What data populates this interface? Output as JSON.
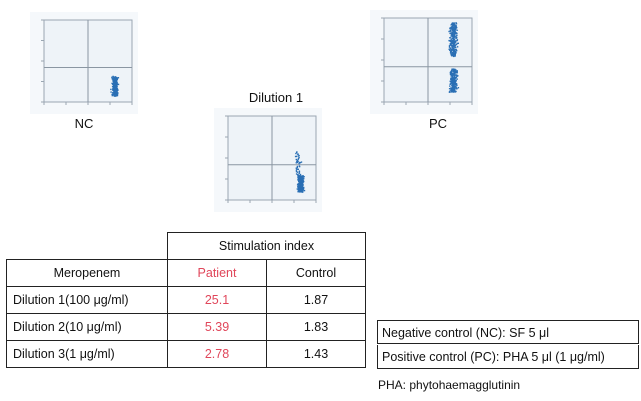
{
  "chart_data": [
    {
      "type": "scatter",
      "caption": "NC",
      "color": "#2a6fb5",
      "clusters": [
        {
          "x_center": 0.8,
          "y_range": [
            0.08,
            0.32
          ],
          "x_spread": 0.05,
          "density": "high"
        }
      ]
    },
    {
      "type": "scatter",
      "caption": "Dilution 1",
      "color": "#2a6fb5",
      "clusters": [
        {
          "x_center": 0.82,
          "y_range": [
            0.1,
            0.3
          ],
          "x_spread": 0.05,
          "density": "high"
        },
        {
          "x_center": 0.78,
          "y_range": [
            0.3,
            0.58
          ],
          "x_spread": 0.06,
          "density": "low"
        }
      ]
    },
    {
      "type": "scatter",
      "caption": "PC",
      "color": "#2a6fb5",
      "clusters": [
        {
          "x_center": 0.78,
          "y_range": [
            0.55,
            0.95
          ],
          "x_spread": 0.06,
          "density": "high"
        },
        {
          "x_center": 0.78,
          "y_range": [
            0.12,
            0.4
          ],
          "x_spread": 0.06,
          "density": "high"
        }
      ]
    },
    {
      "type": "table",
      "header": "Stimulation index",
      "columns": [
        "Meropenem",
        "Patient",
        "Control"
      ],
      "rows": [
        {
          "label": "Dilution 1(100 μg/ml)",
          "patient": "25.1",
          "control": "1.87"
        },
        {
          "label": "Dilution 2(10 μg/ml)",
          "patient": "5.39",
          "control": "1.83"
        },
        {
          "label": "Dilution 3(1 μg/ml)",
          "patient": "2.78",
          "control": "1.43"
        }
      ],
      "patient_color": "#e0465a"
    }
  ],
  "notes": {
    "negative_control": "Negative control (NC): SF 5 μl",
    "positive_control": "Positive control (PC): PHA 5 μl (1 μg/ml)",
    "pha": "PHA: phytohaemagglutinin"
  }
}
